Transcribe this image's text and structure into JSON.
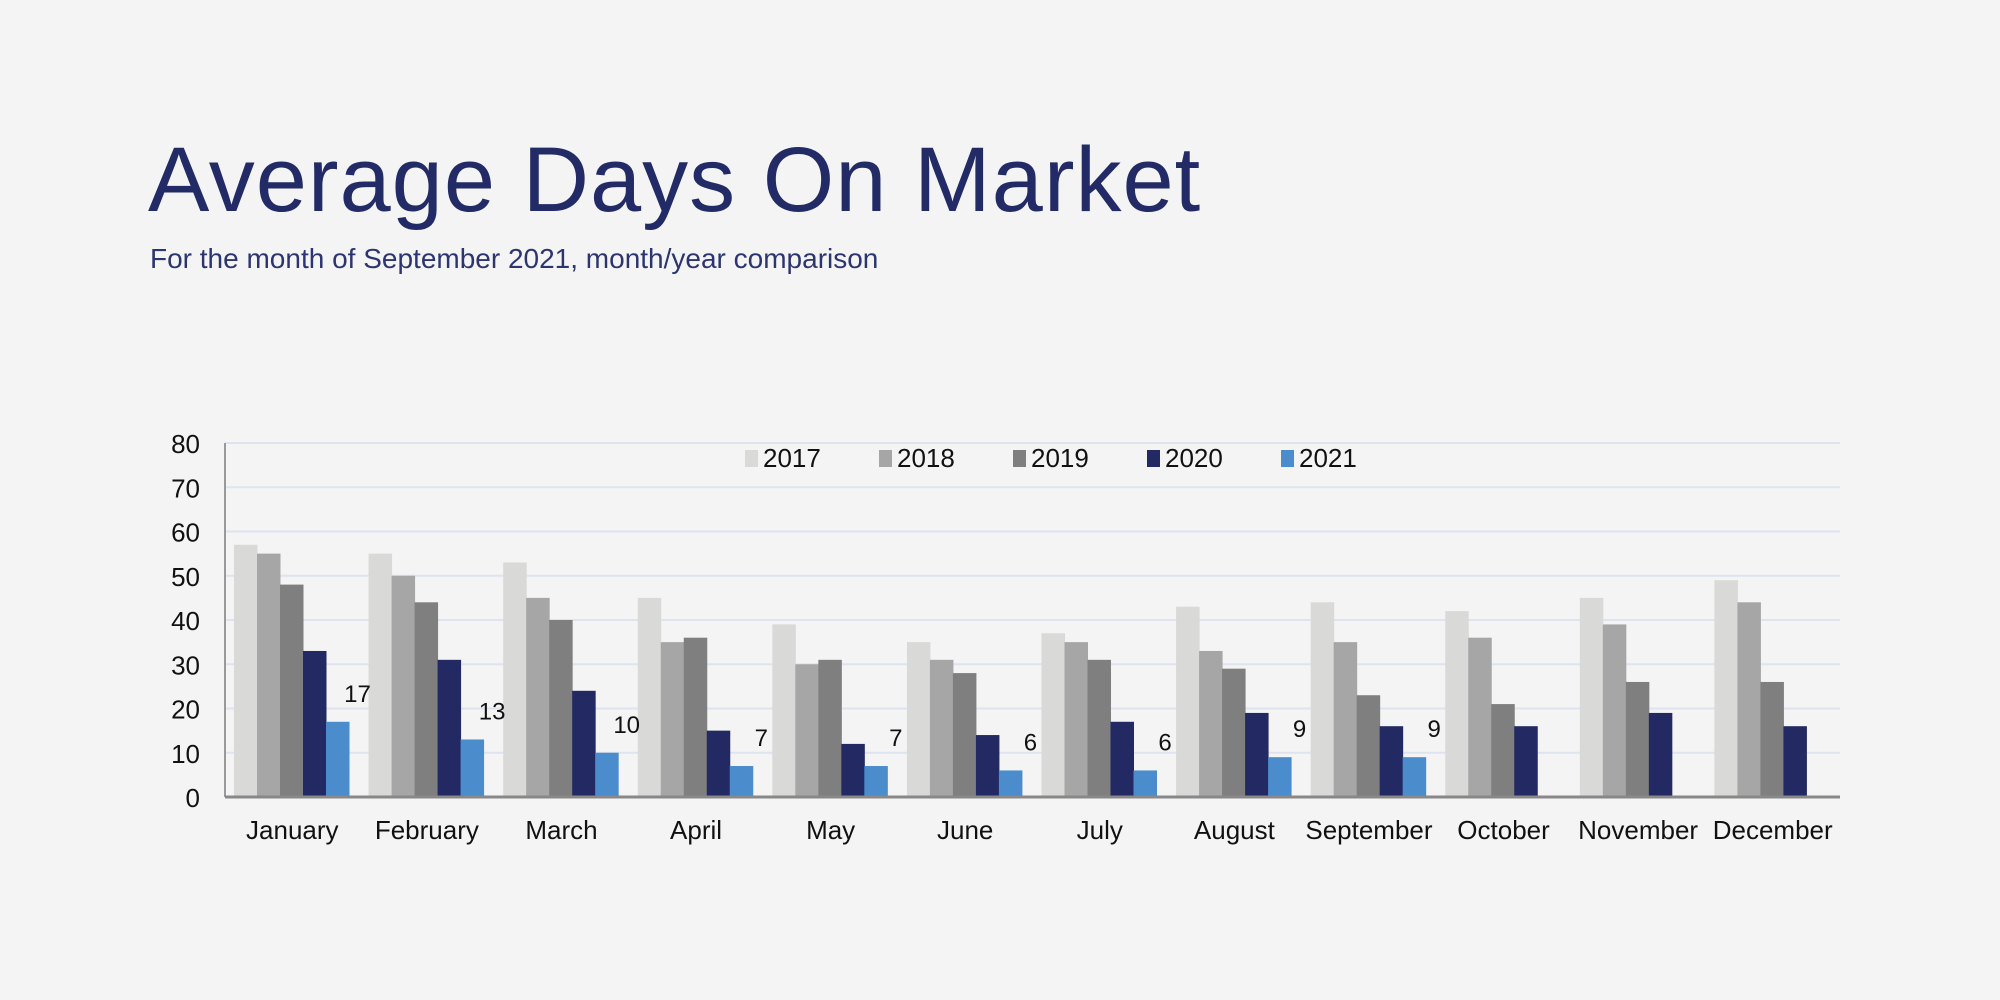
{
  "title": "Average Days On Market",
  "subtitle": "For the month of September 2021, month/year comparison",
  "chart_data": {
    "type": "bar",
    "categories": [
      "January",
      "February",
      "March",
      "April",
      "May",
      "June",
      "July",
      "August",
      "September",
      "October",
      "November",
      "December"
    ],
    "series": [
      {
        "name": "2017",
        "color": "#d9d9d7",
        "values": [
          57,
          55,
          53,
          45,
          39,
          35,
          37,
          43,
          44,
          42,
          45,
          49
        ]
      },
      {
        "name": "2018",
        "color": "#a6a6a6",
        "values": [
          55,
          50,
          45,
          35,
          30,
          31,
          35,
          33,
          35,
          36,
          39,
          44
        ]
      },
      {
        "name": "2019",
        "color": "#7f7f7f",
        "values": [
          48,
          44,
          40,
          36,
          31,
          28,
          31,
          29,
          23,
          21,
          26,
          26
        ]
      },
      {
        "name": "2020",
        "color": "#232a63",
        "values": [
          33,
          31,
          24,
          15,
          12,
          14,
          17,
          19,
          16,
          16,
          19,
          16
        ]
      },
      {
        "name": "2021",
        "color": "#4a8ccc",
        "values": [
          17,
          13,
          10,
          7,
          7,
          6,
          6,
          9,
          9,
          null,
          null,
          null
        ]
      }
    ],
    "data_labels_series": "2021",
    "yticks": [
      0,
      10,
      20,
      30,
      40,
      50,
      60,
      70,
      80
    ],
    "ylim": [
      0,
      80
    ],
    "grid": true,
    "legend": "top-center"
  }
}
